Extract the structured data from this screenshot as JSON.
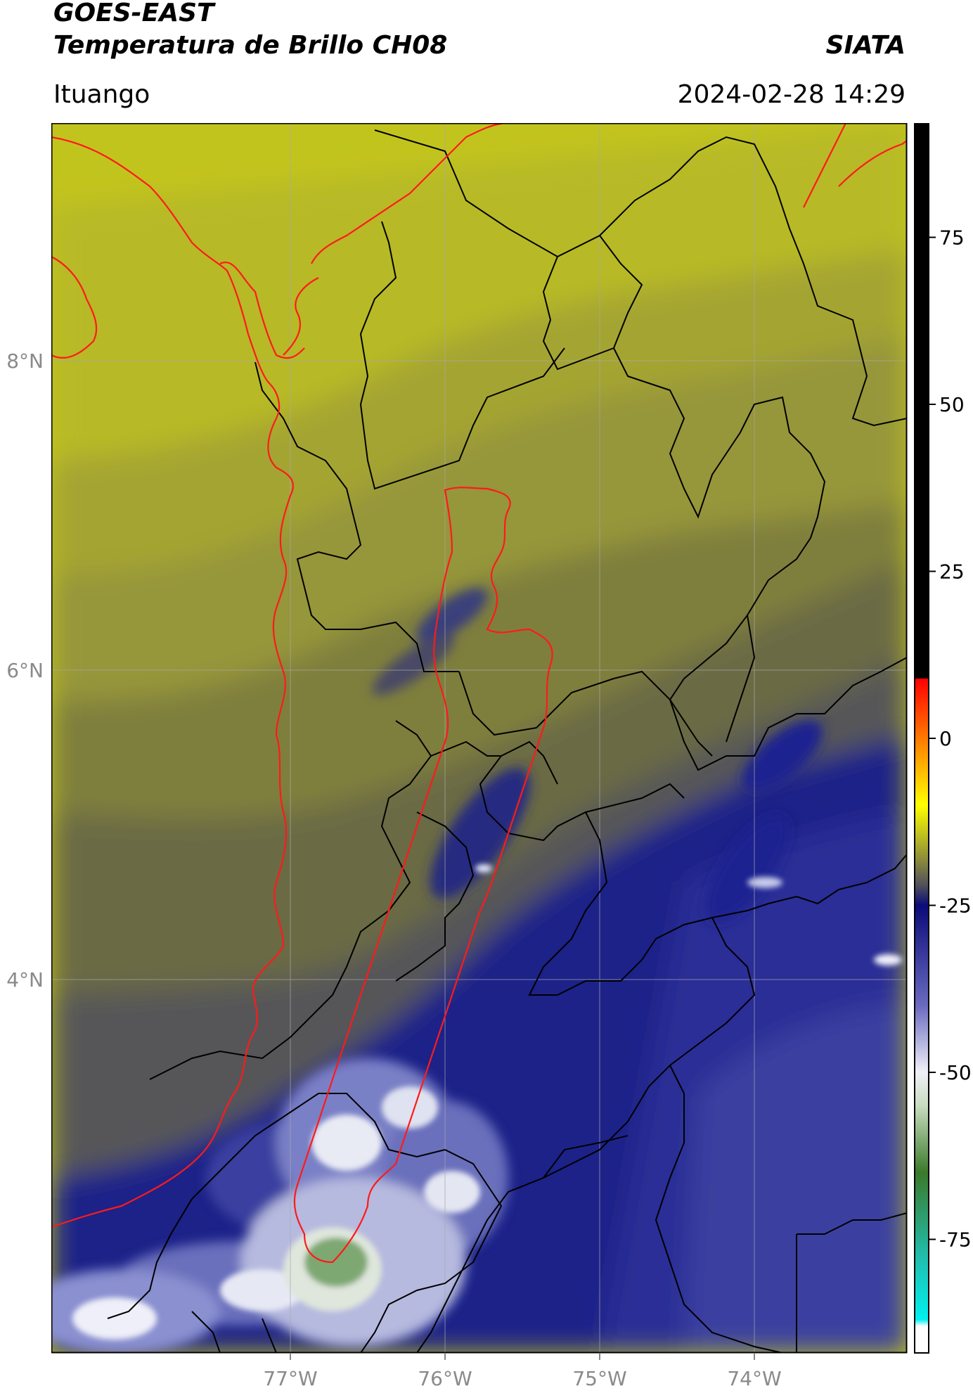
{
  "header": {
    "title_line1": "GOES-EAST",
    "title_line2": "Temperatura de Brillo CH08",
    "org": "SIATA",
    "location": "Ituango",
    "datetime": "2024-02-28 14:29"
  },
  "map": {
    "lon_labels": [
      "77°W",
      "76°W",
      "75°W",
      "74°W"
    ],
    "lat_labels": [
      "8°N",
      "6°N",
      "4°N"
    ],
    "colors": {
      "border": "#000000",
      "coast": "#ff1a1a",
      "basin": "#ff1a1a",
      "grid": "#a8a8a8",
      "warm": "#c9cb1c",
      "mid": "#6e6e3e",
      "cold": "#1a1f8c",
      "cloud_white": "#e8eaf4",
      "cloud_green": "#6a9a5c"
    }
  },
  "colorbar": {
    "tick_labels": [
      "75",
      "50",
      "25",
      "0",
      "-25",
      "-50",
      "-75"
    ],
    "stops": [
      {
        "value": 92,
        "color": "#000000"
      },
      {
        "value": 9,
        "color": "#000000"
      },
      {
        "value": 8.9,
        "color": "#ff0000"
      },
      {
        "value": 0,
        "color": "#ff7a00"
      },
      {
        "value": -10,
        "color": "#ffff00"
      },
      {
        "value": -18,
        "color": "#8e8e3a"
      },
      {
        "value": -22,
        "color": "#50505a"
      },
      {
        "value": -25,
        "color": "#0b0b7a"
      },
      {
        "value": -40,
        "color": "#6a6ac0"
      },
      {
        "value": -50,
        "color": "#f0f0f8"
      },
      {
        "value": -55,
        "color": "#c8dcc0"
      },
      {
        "value": -65,
        "color": "#3a7a2a"
      },
      {
        "value": -78,
        "color": "#20c0b0"
      },
      {
        "value": -87,
        "color": "#00f0f0"
      },
      {
        "value": -88,
        "color": "#ffffff"
      },
      {
        "value": -92,
        "color": "#ffffff"
      }
    ]
  }
}
